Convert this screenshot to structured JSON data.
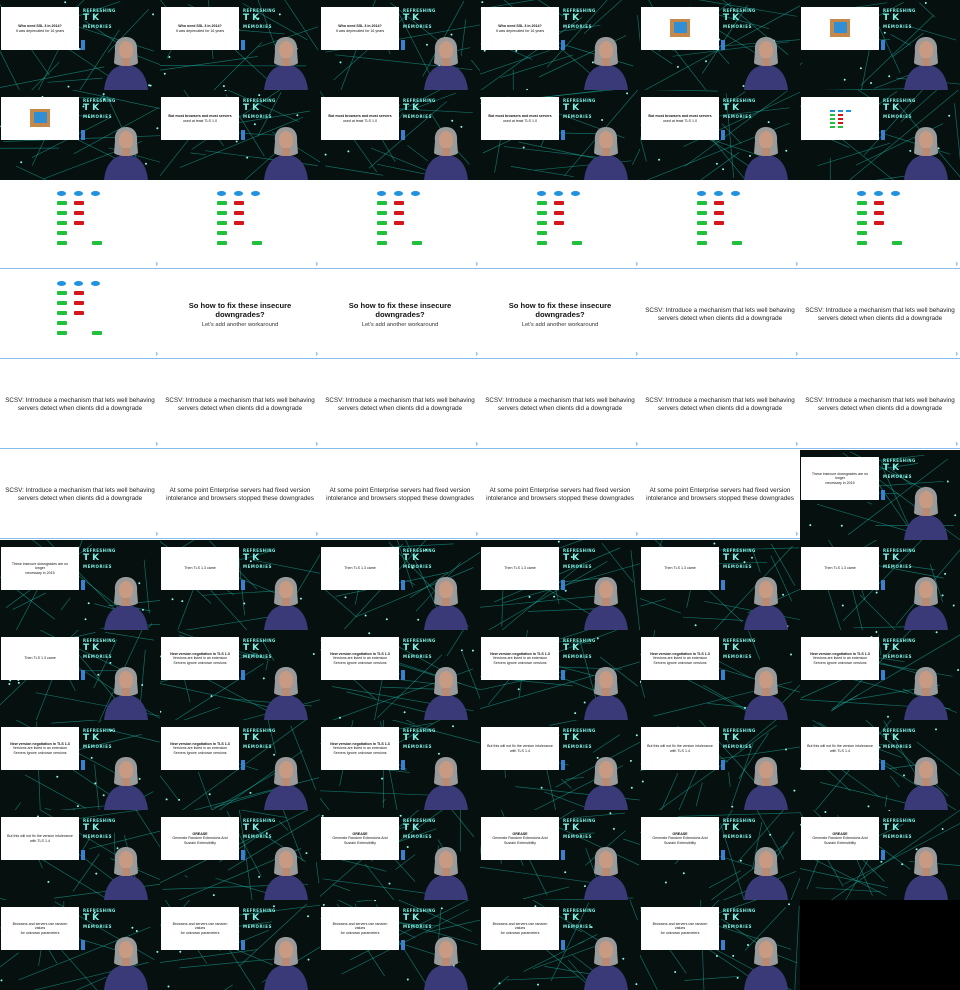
{
  "tiles": [
    {
      "kind": "talk",
      "text": [
        "Who need SSL 3 in 2014?",
        "It was deprecated for 16 years"
      ],
      "bold": true
    },
    {
      "kind": "talk",
      "text": [
        "Who need SSL 3 in 2014?",
        "It was deprecated for 16 years"
      ],
      "bold": true
    },
    {
      "kind": "talk",
      "text": [
        "Who need SSL 3 in 2014?",
        "It was deprecated for 16 years"
      ],
      "bold": true
    },
    {
      "kind": "talk",
      "text": [
        "Who need SSL 3 in 2014?",
        "It was deprecated for 16 years"
      ],
      "bold": true
    },
    {
      "kind": "talk",
      "photo": true,
      "text": [
        ""
      ]
    },
    {
      "kind": "talk",
      "photo": true,
      "text": [
        ""
      ]
    },
    {
      "kind": "talk",
      "photo": true,
      "text": [
        ""
      ]
    },
    {
      "kind": "talk",
      "text": [
        "But most browsers and most servers",
        "used at least TLS 1.0"
      ],
      "bold": true
    },
    {
      "kind": "talk",
      "text": [
        "But most browsers and most servers",
        "used at least TLS 1.0"
      ],
      "bold": true
    },
    {
      "kind": "talk",
      "text": [
        "But most browsers and most servers",
        "used at least TLS 1.0"
      ],
      "bold": true
    },
    {
      "kind": "talk",
      "text": [
        "But most browsers and most servers",
        "used at least TLS 1.0"
      ],
      "bold": true
    },
    {
      "kind": "talk",
      "diagram": true,
      "text": [
        ""
      ]
    },
    {
      "kind": "full",
      "diagram": true,
      "text": [
        ""
      ]
    },
    {
      "kind": "full",
      "diagram": true,
      "text": [
        ""
      ]
    },
    {
      "kind": "full",
      "diagram": true,
      "text": [
        ""
      ]
    },
    {
      "kind": "full",
      "diagram": true,
      "text": [
        ""
      ]
    },
    {
      "kind": "full",
      "diagram": true,
      "text": [
        ""
      ]
    },
    {
      "kind": "full",
      "diagram": true,
      "text": [
        ""
      ]
    },
    {
      "kind": "full",
      "diagram": true,
      "text": [
        ""
      ]
    },
    {
      "kind": "full",
      "head": [
        "So how to fix these insecure",
        "downgrades?"
      ],
      "sub": "Let's add another workaround"
    },
    {
      "kind": "full",
      "head": [
        "So how to fix these insecure",
        "downgrades?"
      ],
      "sub": "Let's add another workaround"
    },
    {
      "kind": "full",
      "head": [
        "So how to fix these insecure",
        "downgrades?"
      ],
      "sub": "Let's add another workaround"
    },
    {
      "kind": "full",
      "text": [
        "SCSV: Introduce a mechanism that lets well behaving",
        "servers detect when clients did a downgrade"
      ]
    },
    {
      "kind": "full",
      "text": [
        "SCSV: Introduce a mechanism that lets well behaving",
        "servers detect when clients did a downgrade"
      ]
    },
    {
      "kind": "full",
      "text": [
        "SCSV: Introduce a mechanism that lets well behaving",
        "servers detect when clients did a downgrade"
      ]
    },
    {
      "kind": "full",
      "text": [
        "SCSV: Introduce a mechanism that lets well behaving",
        "servers detect when clients did a downgrade"
      ]
    },
    {
      "kind": "full",
      "text": [
        "SCSV: Introduce a mechanism that lets well behaving",
        "servers detect when clients did a downgrade"
      ]
    },
    {
      "kind": "full",
      "text": [
        "SCSV: Introduce a mechanism that lets well behaving",
        "servers detect when clients did a downgrade"
      ]
    },
    {
      "kind": "full",
      "text": [
        "SCSV: Introduce a mechanism that lets well behaving",
        "servers detect when clients did a downgrade"
      ]
    },
    {
      "kind": "full",
      "text": [
        "SCSV: Introduce a mechanism that lets well behaving",
        "servers detect when clients did a downgrade"
      ]
    },
    {
      "kind": "full",
      "text": [
        "SCSV: Introduce a mechanism that lets well behaving",
        "servers detect when clients did a downgrade"
      ]
    },
    {
      "kind": "full",
      "text": [
        "At some point Enterprise servers had fixed version",
        "intolerance and browsers stopped these downgrades"
      ]
    },
    {
      "kind": "full",
      "text": [
        "At some point Enterprise servers had fixed version",
        "intolerance and browsers stopped these downgrades"
      ]
    },
    {
      "kind": "full",
      "text": [
        "At some point Enterprise servers had fixed version",
        "intolerance and browsers stopped these downgrades"
      ]
    },
    {
      "kind": "full",
      "text": [
        "At some point Enterprise servers had fixed version",
        "intolerance and browsers stopped these downgrades"
      ]
    },
    {
      "kind": "talk",
      "text": [
        "These insecure downgrades are no longer",
        "necessary in 2015"
      ]
    },
    {
      "kind": "talk",
      "text": [
        "These insecure downgrades are no longer",
        "necessary in 2015"
      ]
    },
    {
      "kind": "talk",
      "text": [
        "Then TLS 1.3 came"
      ]
    },
    {
      "kind": "talk",
      "text": [
        "Then TLS 1.3 came"
      ]
    },
    {
      "kind": "talk",
      "text": [
        "Then TLS 1.3 came"
      ]
    },
    {
      "kind": "talk",
      "text": [
        "Then TLS 1.3 came"
      ]
    },
    {
      "kind": "talk",
      "text": [
        "Then TLS 1.3 came"
      ]
    },
    {
      "kind": "talk",
      "text": [
        "Then TLS 1.3 came"
      ]
    },
    {
      "kind": "talk",
      "text": [
        "New version negotiation in TLS 1.3",
        "Versions are listed in an extension",
        "Servers ignore unknown versions"
      ],
      "bold": true
    },
    {
      "kind": "talk",
      "text": [
        "New version negotiation in TLS 1.3",
        "Versions are listed in an extension",
        "Servers ignore unknown versions"
      ],
      "bold": true
    },
    {
      "kind": "talk",
      "text": [
        "New version negotiation in TLS 1.3",
        "Versions are listed in an extension",
        "Servers ignore unknown versions"
      ],
      "bold": true
    },
    {
      "kind": "talk",
      "text": [
        "New version negotiation in TLS 1.3",
        "Versions are listed in an extension",
        "Servers ignore unknown versions"
      ],
      "bold": true
    },
    {
      "kind": "talk",
      "text": [
        "New version negotiation in TLS 1.3",
        "Versions are listed in an extension",
        "Servers ignore unknown versions"
      ],
      "bold": true
    },
    {
      "kind": "talk",
      "text": [
        "New version negotiation in TLS 1.3",
        "Versions are listed in an extension",
        "Servers ignore unknown versions"
      ],
      "bold": true
    },
    {
      "kind": "talk",
      "text": [
        "New version negotiation in TLS 1.3",
        "Versions are listed in an extension",
        "Servers ignore unknown versions"
      ],
      "bold": true
    },
    {
      "kind": "talk",
      "text": [
        "New version negotiation in TLS 1.3",
        "Versions are listed in an extension",
        "Servers ignore unknown versions"
      ],
      "bold": true
    },
    {
      "kind": "talk",
      "text": [
        "But this will not fix the version intolerance",
        "with TLS 1.4"
      ]
    },
    {
      "kind": "talk",
      "text": [
        "But this will not fix the version intolerance",
        "with TLS 1.4"
      ]
    },
    {
      "kind": "talk",
      "text": [
        "But this will not fix the version intolerance",
        "with TLS 1.4"
      ]
    },
    {
      "kind": "talk",
      "text": [
        "But this will not fix the version intolerance",
        "with TLS 1.4"
      ]
    },
    {
      "kind": "talk",
      "text": [
        "GREASE",
        "Generate Random Extensions And Sustain Extensibility"
      ],
      "bold": true
    },
    {
      "kind": "talk",
      "text": [
        "GREASE",
        "Generate Random Extensions And Sustain Extensibility"
      ],
      "bold": true
    },
    {
      "kind": "talk",
      "text": [
        "GREASE",
        "Generate Random Extensions And Sustain Extensibility"
      ],
      "bold": true
    },
    {
      "kind": "talk",
      "text": [
        "GREASE",
        "Generate Random Extensions And Sustain Extensibility"
      ],
      "bold": true
    },
    {
      "kind": "talk",
      "text": [
        "GREASE",
        "Generate Random Extensions And Sustain Extensibility"
      ],
      "bold": true
    },
    {
      "kind": "talk",
      "text": [
        "Browsers and servers use random values",
        "for unknown parameters"
      ]
    },
    {
      "kind": "talk",
      "text": [
        "Browsers and servers use random values",
        "for unknown parameters"
      ]
    },
    {
      "kind": "talk",
      "text": [
        "Browsers and servers use random values",
        "for unknown parameters"
      ]
    },
    {
      "kind": "talk",
      "text": [
        "Browsers and servers use random values",
        "for unknown parameters"
      ]
    },
    {
      "kind": "talk",
      "text": [
        "Browsers and servers use random values",
        "for unknown parameters"
      ]
    }
  ],
  "logo": {
    "line1": "REFRESHING",
    "line2": "TK",
    "line3": "MEMORIES"
  },
  "colors": {
    "accent": "#3b8fd8",
    "mesh": "#1fb8a8",
    "green": "#1fc23a",
    "red": "#d8141b",
    "blue": "#1f93e0"
  }
}
